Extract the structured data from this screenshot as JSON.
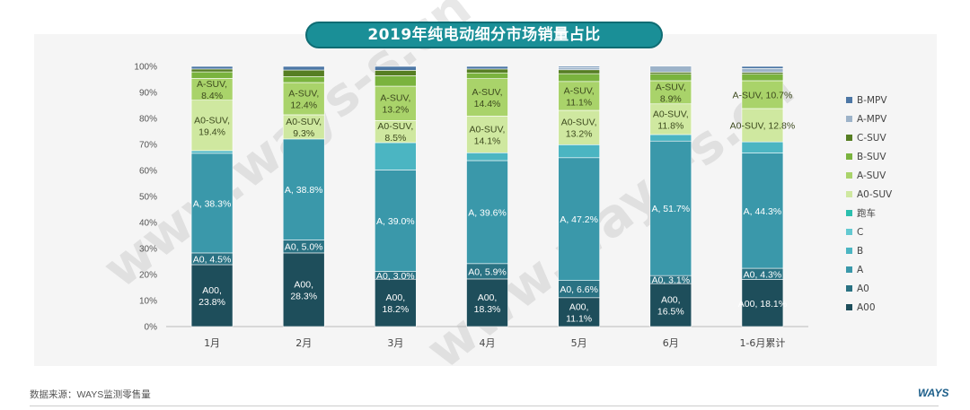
{
  "chart_data": {
    "type": "bar",
    "stacked": true,
    "percent": true,
    "title": "2019年纯电动细分市场销量占比",
    "xlabel": "",
    "ylabel": "",
    "ylim": [
      0,
      100
    ],
    "y_ticks": [
      "0%",
      "10%",
      "20%",
      "30%",
      "40%",
      "50%",
      "60%",
      "70%",
      "80%",
      "90%",
      "100%"
    ],
    "categories": [
      "1月",
      "2月",
      "3月",
      "4月",
      "5月",
      "6月",
      "1-6月累计"
    ],
    "series": [
      {
        "name": "A00",
        "color": "#1e4e5b",
        "values": [
          23.8,
          28.3,
          18.2,
          18.3,
          11.1,
          16.5,
          18.1
        ],
        "labels": [
          "A00,\n23.8%",
          "A00,\n28.3%",
          "A00,\n18.2%",
          "A00,\n18.3%",
          "A00,\n11.1%",
          "A00,\n16.5%",
          "A00, 18.1%"
        ]
      },
      {
        "name": "A0",
        "color": "#2a7283",
        "values": [
          4.5,
          5.0,
          3.0,
          5.9,
          6.6,
          3.1,
          4.3
        ],
        "labels": [
          "A0, 4.5%",
          "A0, 5.0%",
          "A0, 3.0%",
          "A0, 5.9%",
          "A0, 6.6%",
          "A0, 3.1%",
          "A0, 4.3%"
        ]
      },
      {
        "name": "A",
        "color": "#3a98aa",
        "values": [
          38.3,
          38.8,
          39.0,
          39.6,
          47.2,
          51.7,
          44.3
        ],
        "labels": [
          "A, 38.3%",
          "A, 38.8%",
          "A, 39.0%",
          "A, 39.6%",
          "A, 47.2%",
          "A, 51.7%",
          "A, 44.3%"
        ]
      },
      {
        "name": "B",
        "color": "#4bb5c2",
        "values": [
          1.0,
          0.0,
          10.5,
          3.0,
          5.0,
          2.5,
          4.3
        ],
        "labels": []
      },
      {
        "name": "C",
        "color": "#63c9d1",
        "values": [
          0.0,
          0.0,
          0.0,
          0.0,
          0.0,
          0.0,
          0.0
        ],
        "labels": []
      },
      {
        "name": "跑车",
        "color": "#2bbfae",
        "values": [
          0.0,
          0.0,
          0.0,
          0.0,
          0.0,
          0.0,
          0.0
        ],
        "labels": []
      },
      {
        "name": "A0-SUV",
        "color": "#cfe8a0",
        "values": [
          19.4,
          9.3,
          8.5,
          14.1,
          13.2,
          11.8,
          12.8
        ],
        "labels": [
          "A0-SUV,\n19.4%",
          "A0-SUV,\n9.3%",
          "A0-SUV,\n8.5%",
          "A0-SUV,\n14.1%",
          "A0-SUV,\n13.2%",
          "A0-SUV,\n11.8%",
          "A0-SUV, 12.8%"
        ]
      },
      {
        "name": "A-SUV",
        "color": "#a9d36a",
        "values": [
          8.4,
          12.4,
          13.2,
          14.4,
          11.1,
          8.9,
          10.7
        ],
        "labels": [
          "A-SUV,\n8.4%",
          "A-SUV,\n12.4%",
          "A-SUV,\n13.2%",
          "A-SUV,\n14.4%",
          "A-SUV,\n11.1%",
          "A-SUV,\n8.9%",
          "A-SUV, 10.7%"
        ]
      },
      {
        "name": "B-SUV",
        "color": "#7ab33e",
        "values": [
          2.5,
          2.3,
          4.0,
          2.2,
          3.0,
          2.5,
          2.5
        ],
        "labels": []
      },
      {
        "name": "C-SUV",
        "color": "#567e23",
        "values": [
          1.1,
          2.5,
          2.1,
          1.5,
          1.5,
          0.8,
          0.7
        ],
        "labels": []
      },
      {
        "name": "A-MPV",
        "color": "#9db3c9",
        "values": [
          0.0,
          0.0,
          0.0,
          0.0,
          0.8,
          2.3,
          1.5
        ],
        "labels": []
      },
      {
        "name": "B-MPV",
        "color": "#4d77a5",
        "values": [
          1.0,
          1.4,
          1.5,
          1.0,
          0.5,
          0.0,
          0.8
        ],
        "labels": []
      }
    ],
    "legend_position": "right",
    "legend_order": [
      "B-MPV",
      "A-MPV",
      "C-SUV",
      "B-SUV",
      "A-SUV",
      "A0-SUV",
      "跑车",
      "C",
      "B",
      "A",
      "A0",
      "A00"
    ]
  },
  "footer": {
    "source": "数据来源：WAYS监测零售量",
    "logo": "WAYS"
  },
  "watermark": {
    "text": "www.ways-s.cn"
  }
}
